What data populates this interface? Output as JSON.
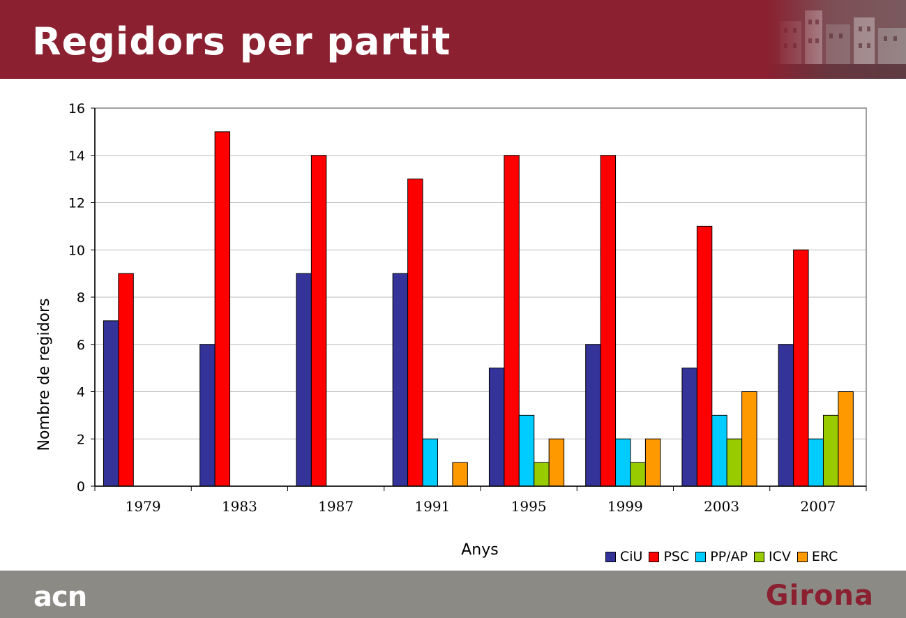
{
  "header": {
    "title": "Regidors per partit"
  },
  "footer": {
    "logo": "acn",
    "city": "Girona"
  },
  "chart_data": {
    "type": "bar",
    "title": "",
    "xlabel": "Anys",
    "ylabel": "Nombre de regidors",
    "ylim": [
      0,
      16
    ],
    "yticks": [
      0,
      2,
      4,
      6,
      8,
      10,
      12,
      14,
      16
    ],
    "grid": true,
    "legend_position": "bottom-right",
    "categories": [
      "1979",
      "1983",
      "1987",
      "1991",
      "1995",
      "1999",
      "2003",
      "2007"
    ],
    "series": [
      {
        "name": "CiU",
        "color": "#333399",
        "values": [
          7,
          6,
          9,
          9,
          5,
          6,
          5,
          6
        ]
      },
      {
        "name": "PSC",
        "color": "#ff0000",
        "values": [
          9,
          15,
          14,
          13,
          14,
          14,
          11,
          10
        ]
      },
      {
        "name": "PP/AP",
        "color": "#00ccff",
        "values": [
          0,
          0,
          0,
          2,
          3,
          2,
          3,
          2
        ]
      },
      {
        "name": "ICV",
        "color": "#99cc00",
        "values": [
          0,
          0,
          0,
          0,
          1,
          1,
          2,
          3
        ]
      },
      {
        "name": "ERC",
        "color": "#ff9900",
        "values": [
          0,
          0,
          0,
          1,
          2,
          2,
          4,
          4
        ]
      }
    ]
  }
}
